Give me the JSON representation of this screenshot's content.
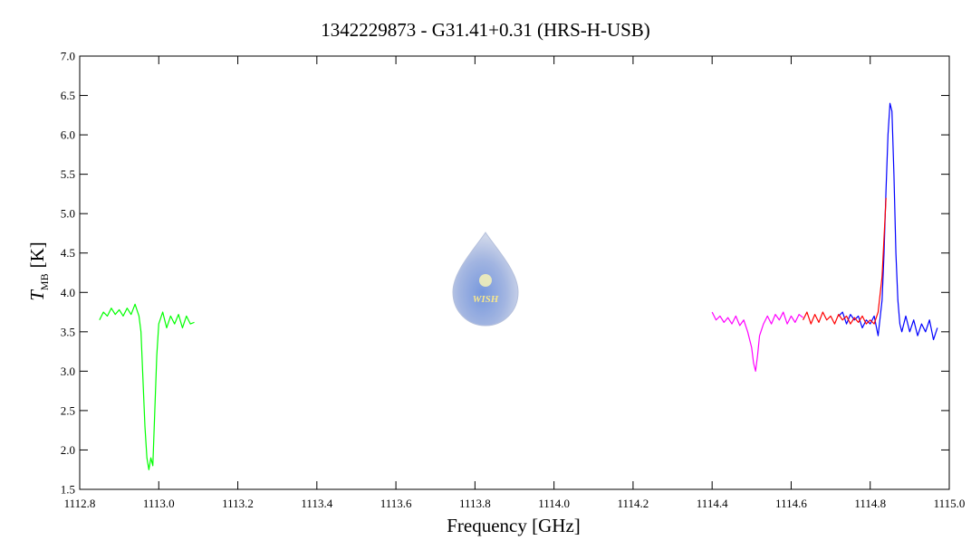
{
  "chart_data": {
    "type": "line",
    "title": "1342229873 - G31.41+0.31 (HRS-H-USB)",
    "xlabel": "Frequency [GHz]",
    "ylabel": {
      "symbol": "T",
      "subscript": "MB",
      "unit": "[K]"
    },
    "logo_text": "WISH",
    "xlim": [
      1112.8,
      1115.0
    ],
    "ylim": [
      1.5,
      7.0
    ],
    "xticks": [
      1112.8,
      {
        "value": 1113.0,
        "label": "1113.0"
      },
      1113.2,
      1113.4,
      1113.6,
      1113.8,
      {
        "value": 1114.0,
        "label": "1114.0"
      },
      1114.2,
      1114.4,
      1114.6,
      1114.8,
      {
        "value": 1115.0,
        "label": "1115.0"
      }
    ],
    "yticks": [
      1.5,
      {
        "value": 2.0,
        "label": "2.0"
      },
      2.5,
      {
        "value": 3.0,
        "label": "3.0"
      },
      3.5,
      {
        "value": 4.0,
        "label": "4.0"
      },
      4.5,
      {
        "value": 5.0,
        "label": "5.0"
      },
      5.5,
      {
        "value": 6.0,
        "label": "6.0"
      },
      6.5,
      {
        "value": 7.0,
        "label": "7.0"
      }
    ],
    "series": [
      {
        "color": "#00ff00",
        "x": [
          1112.85,
          1112.86,
          1112.87,
          1112.88,
          1112.89,
          1112.9,
          1112.91,
          1112.92,
          1112.93,
          1112.94,
          1112.95,
          1112.955,
          1112.96,
          1112.965,
          1112.97,
          1112.975,
          1112.98,
          1112.985,
          1112.99,
          1112.995,
          1113.0,
          1113.01,
          1113.02,
          1113.03,
          1113.04,
          1113.05,
          1113.06,
          1113.07,
          1113.08,
          1113.09
        ],
        "values": [
          3.65,
          3.75,
          3.7,
          3.8,
          3.72,
          3.78,
          3.7,
          3.8,
          3.72,
          3.85,
          3.7,
          3.5,
          2.9,
          2.3,
          1.9,
          1.75,
          1.9,
          1.8,
          2.5,
          3.2,
          3.6,
          3.75,
          3.55,
          3.7,
          3.6,
          3.72,
          3.55,
          3.7,
          3.6,
          3.62
        ]
      },
      {
        "color": "#ff00ff",
        "x": [
          1114.4,
          1114.41,
          1114.42,
          1114.43,
          1114.44,
          1114.45,
          1114.46,
          1114.47,
          1114.48,
          1114.49,
          1114.5,
          1114.505,
          1114.51,
          1114.515,
          1114.52,
          1114.53,
          1114.54,
          1114.55,
          1114.56,
          1114.57,
          1114.58,
          1114.59,
          1114.6,
          1114.61,
          1114.62,
          1114.63
        ],
        "values": [
          3.75,
          3.65,
          3.7,
          3.62,
          3.68,
          3.6,
          3.7,
          3.58,
          3.65,
          3.5,
          3.3,
          3.1,
          3.0,
          3.2,
          3.45,
          3.6,
          3.7,
          3.6,
          3.72,
          3.65,
          3.75,
          3.6,
          3.7,
          3.62,
          3.72,
          3.68
        ]
      },
      {
        "color": "#0000ff",
        "x": [
          1114.72,
          1114.73,
          1114.74,
          1114.75,
          1114.76,
          1114.77,
          1114.78,
          1114.79,
          1114.8,
          1114.81,
          1114.82,
          1114.83,
          1114.835,
          1114.84,
          1114.845,
          1114.85,
          1114.855,
          1114.86,
          1114.865,
          1114.87,
          1114.875,
          1114.88,
          1114.89,
          1114.9,
          1114.91,
          1114.92,
          1114.93,
          1114.94,
          1114.95,
          1114.96,
          1114.97
        ],
        "values": [
          3.7,
          3.75,
          3.6,
          3.72,
          3.65,
          3.7,
          3.55,
          3.65,
          3.6,
          3.7,
          3.45,
          3.9,
          4.5,
          5.3,
          6.0,
          6.4,
          6.3,
          5.5,
          4.5,
          3.9,
          3.6,
          3.5,
          3.7,
          3.5,
          3.65,
          3.45,
          3.6,
          3.5,
          3.65,
          3.4,
          3.55
        ]
      },
      {
        "color": "#ff0000",
        "x": [
          1114.63,
          1114.64,
          1114.65,
          1114.66,
          1114.67,
          1114.68,
          1114.69,
          1114.7,
          1114.71,
          1114.72,
          1114.73,
          1114.74,
          1114.75,
          1114.76,
          1114.77,
          1114.78,
          1114.79,
          1114.8,
          1114.81,
          1114.82,
          1114.83,
          1114.84
        ],
        "values": [
          3.65,
          3.75,
          3.6,
          3.72,
          3.62,
          3.75,
          3.65,
          3.7,
          3.6,
          3.72,
          3.65,
          3.7,
          3.6,
          3.68,
          3.62,
          3.7,
          3.6,
          3.65,
          3.6,
          3.75,
          4.2,
          5.2
        ]
      }
    ]
  }
}
